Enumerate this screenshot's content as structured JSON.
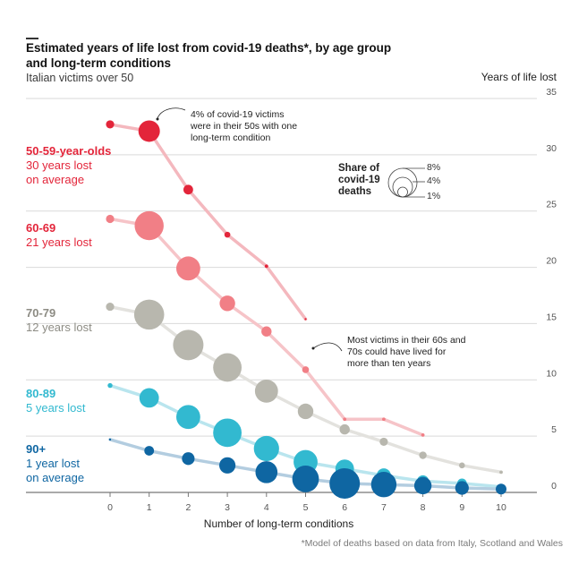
{
  "chart_data": {
    "type": "scatter",
    "title": "Estimated years of life lost from covid-19 deaths*, by age group and long-term conditions",
    "subtitle": "Italian victims over 50",
    "xlabel": "Number of long-term conditions",
    "ylabel": "Years of life lost",
    "xlim": [
      0,
      10
    ],
    "ylim": [
      0,
      35
    ],
    "x_ticks": [
      0,
      1,
      2,
      3,
      4,
      5,
      6,
      7,
      8,
      9,
      10
    ],
    "y_ticks": [
      0,
      5,
      10,
      15,
      20,
      25,
      30,
      35
    ],
    "grid": true,
    "y_axis_side": "right",
    "bubble_legend": {
      "title": "Share of covid-19 deaths",
      "values": [
        "8%",
        "4%",
        "1%"
      ]
    },
    "series": [
      {
        "name": "50-59-year-olds",
        "label_line1": "50-59-year-olds",
        "label_line2": "30 years lost",
        "label_line3": "on average",
        "color": "#e3253a",
        "line_color": "#f4b8be",
        "x": [
          0,
          1,
          2,
          3,
          4,
          5
        ],
        "y": [
          32.7,
          32.1,
          26.9,
          22.9,
          20.1,
          15.4
        ],
        "share_pct": [
          0.6,
          4.0,
          0.8,
          0.3,
          0.1,
          0.03
        ]
      },
      {
        "name": "60-69",
        "label_line1": "60-69",
        "label_line2": "21 years lost",
        "label_line3": "",
        "color": "#f17f86",
        "line_color": "#f6c4c8",
        "x": [
          0,
          1,
          2,
          3,
          4,
          5,
          6,
          7,
          8
        ],
        "y": [
          24.3,
          23.7,
          19.9,
          16.8,
          14.3,
          10.9,
          6.5,
          6.5,
          5.1
        ],
        "share_pct": [
          0.6,
          7.3,
          5.0,
          2.1,
          0.9,
          0.4,
          0.1,
          0.1,
          0.1
        ]
      },
      {
        "name": "70-79",
        "label_line1": "70-79",
        "label_line2": "12 years lost",
        "label_line3": "",
        "color": "#b8b7ae",
        "line_color": "#e3e2de",
        "x": [
          0,
          1,
          2,
          3,
          4,
          5,
          6,
          7,
          8,
          9,
          10
        ],
        "y": [
          16.5,
          15.8,
          13.1,
          11.1,
          9.0,
          7.2,
          5.6,
          4.5,
          3.3,
          2.4,
          1.8
        ],
        "share_pct": [
          0.6,
          7.8,
          8.0,
          7.0,
          4.6,
          2.1,
          0.9,
          0.6,
          0.5,
          0.3,
          0.1
        ]
      },
      {
        "name": "80-89",
        "label_line1": "80-89",
        "label_line2": "5 years lost",
        "label_line3": "",
        "color": "#32b9d0",
        "line_color": "#b9e5ee",
        "x": [
          0,
          1,
          2,
          3,
          4,
          5,
          6,
          7,
          8,
          9,
          10
        ],
        "y": [
          9.5,
          8.4,
          6.7,
          5.3,
          3.9,
          2.7,
          2.1,
          1.5,
          1.0,
          0.8,
          0.5
        ],
        "share_pct": [
          0.2,
          3.3,
          5.0,
          7.0,
          5.5,
          5.0,
          3.0,
          1.8,
          1.2,
          0.8,
          0.3
        ]
      },
      {
        "name": "90+",
        "label_line1": "90+",
        "label_line2": "1 year lost",
        "label_line3": "on average",
        "color": "#0f66a2",
        "line_color": "#b3cde0",
        "x": [
          0,
          1,
          2,
          3,
          4,
          5,
          6,
          7,
          8,
          9,
          10
        ],
        "y": [
          4.7,
          3.7,
          3.0,
          2.4,
          1.8,
          1.2,
          0.8,
          0.7,
          0.6,
          0.4,
          0.3
        ],
        "share_pct": [
          0.01,
          0.8,
          1.4,
          2.3,
          4.2,
          6.2,
          8.0,
          5.6,
          2.6,
          1.6,
          1.0
        ]
      }
    ],
    "annotations": [
      "4% of covid-19 victims were in their 50s with one long-term condition",
      "Most victims in their 60s and 70s could have lived for more than ten years"
    ],
    "footnote": "*Model of deaths based on data from Italy, Scotland and Wales"
  },
  "header": {
    "title": "Estimated years of life lost from covid-19 deaths*, by age group and long-term conditions",
    "subtitle": "Italian victims over 50",
    "y_axis_title": "Years of life lost"
  },
  "annotations": {
    "a1_line1": "4% of covid-19 victims",
    "a1_line2": "were in their 50s with one",
    "a1_line3": "long-term condition",
    "a2_line1": "Most victims in their 60s and",
    "a2_line2": "70s could have lived for",
    "a2_line3": "more than ten years"
  },
  "legend": {
    "line1": "Share of",
    "line2": "covid-19",
    "line3": "deaths",
    "v8": "8%",
    "v4": "4%",
    "v1": "1%"
  },
  "footer": {
    "xlabel": "Number of long-term conditions",
    "footnote": "*Model of deaths based on data from Italy, Scotland and Wales"
  }
}
